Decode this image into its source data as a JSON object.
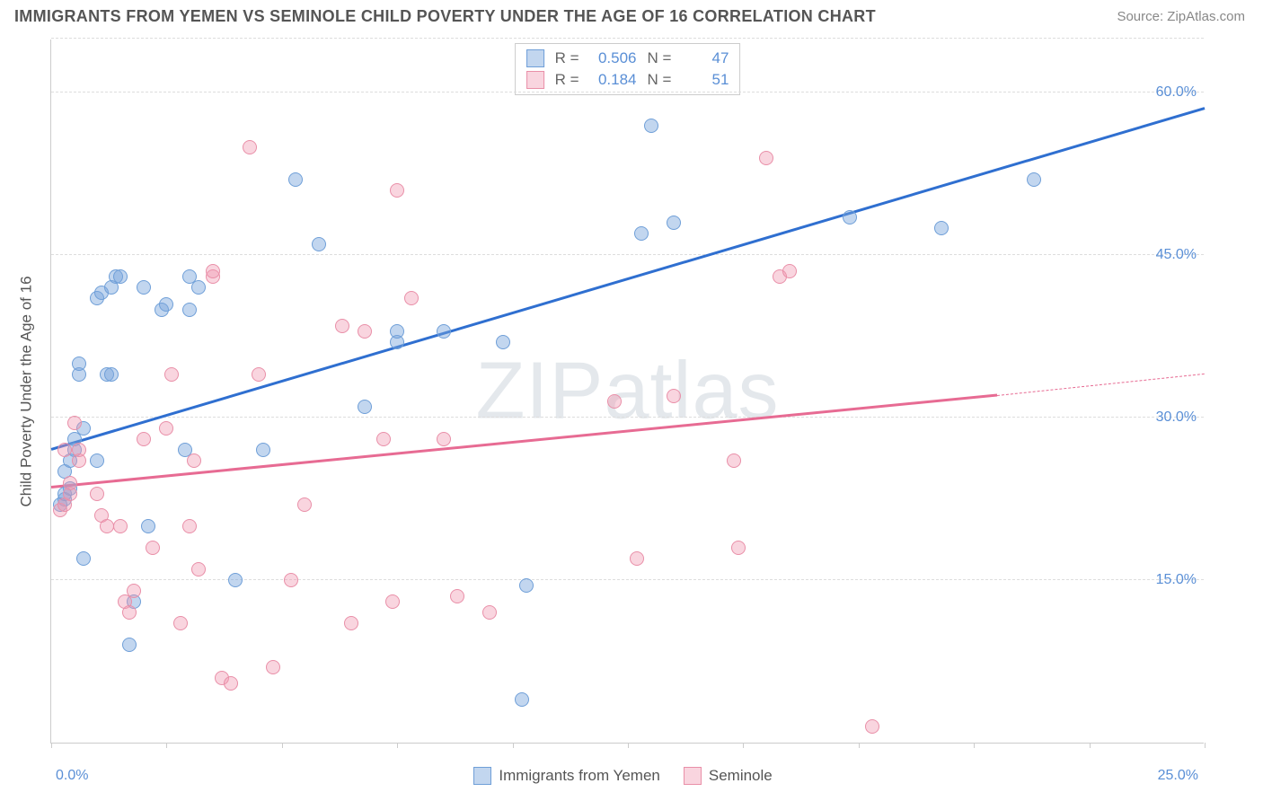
{
  "header": {
    "title": "IMMIGRANTS FROM YEMEN VS SEMINOLE CHILD POVERTY UNDER THE AGE OF 16 CORRELATION CHART",
    "source": "Source: ZipAtlas.com"
  },
  "watermark": {
    "bold": "ZIP",
    "thin": "atlas"
  },
  "chart": {
    "type": "scatter",
    "xlim": [
      0,
      25
    ],
    "ylim": [
      0,
      65
    ],
    "x_ticks_pct": [
      0,
      10,
      20,
      30,
      40,
      50,
      60,
      70,
      80,
      90,
      100
    ],
    "y_gridlines": [
      15,
      30,
      45,
      60,
      65
    ],
    "y_labels": [
      {
        "v": 15,
        "t": "15.0%"
      },
      {
        "v": 30,
        "t": "30.0%"
      },
      {
        "v": 45,
        "t": "45.0%"
      },
      {
        "v": 60,
        "t": "60.0%"
      }
    ],
    "x_min_label": "0.0%",
    "x_max_label": "25.0%",
    "y_title": "Child Poverty Under the Age of 16",
    "grid_color": "#dddddd",
    "axis_color": "#cccccc",
    "label_color": "#5a8fd6",
    "series": [
      {
        "name": "Immigrants from Yemen",
        "fill": "rgba(120,165,220,0.45)",
        "stroke": "#6f9fd8",
        "line_color": "#2f6fd0",
        "R": "0.506",
        "N": "47",
        "trend": {
          "x1": 0,
          "y1": 27,
          "x2": 25,
          "y2": 58.5
        },
        "points": [
          [
            0.2,
            22
          ],
          [
            0.3,
            22.5
          ],
          [
            0.3,
            23
          ],
          [
            0.4,
            23.5
          ],
          [
            0.3,
            25
          ],
          [
            0.4,
            26
          ],
          [
            0.5,
            27
          ],
          [
            0.5,
            28
          ],
          [
            0.7,
            17
          ],
          [
            0.7,
            29
          ],
          [
            0.6,
            34
          ],
          [
            0.6,
            35
          ],
          [
            1.0,
            26
          ],
          [
            1.2,
            34
          ],
          [
            1.3,
            34
          ],
          [
            1.0,
            41
          ],
          [
            1.1,
            41.5
          ],
          [
            1.3,
            42
          ],
          [
            1.4,
            43
          ],
          [
            1.5,
            43
          ],
          [
            2.0,
            42
          ],
          [
            1.7,
            9
          ],
          [
            1.8,
            13
          ],
          [
            2.1,
            20
          ],
          [
            2.4,
            40
          ],
          [
            2.5,
            40.5
          ],
          [
            2.9,
            27
          ],
          [
            3.0,
            40
          ],
          [
            3.0,
            43
          ],
          [
            3.2,
            42
          ],
          [
            4.0,
            15
          ],
          [
            4.6,
            27
          ],
          [
            5.3,
            52
          ],
          [
            5.8,
            46
          ],
          [
            6.8,
            31
          ],
          [
            7.5,
            37
          ],
          [
            7.5,
            38
          ],
          [
            8.5,
            38
          ],
          [
            9.8,
            37
          ],
          [
            10.2,
            4
          ],
          [
            10.3,
            14.5
          ],
          [
            12.8,
            47
          ],
          [
            13.0,
            57
          ],
          [
            13.5,
            48
          ],
          [
            17.3,
            48.5
          ],
          [
            19.3,
            47.5
          ],
          [
            21.3,
            52
          ]
        ]
      },
      {
        "name": "Seminole",
        "fill": "rgba(240,150,175,0.40)",
        "stroke": "#e98fa8",
        "line_color": "#e76b93",
        "R": "0.184",
        "N": "51",
        "trend_solid": {
          "x1": 0,
          "y1": 23.5,
          "x2": 20.5,
          "y2": 32
        },
        "trend_dash": {
          "x1": 20.5,
          "y1": 32,
          "x2": 25,
          "y2": 34
        },
        "points": [
          [
            0.2,
            21.5
          ],
          [
            0.3,
            22
          ],
          [
            0.4,
            23
          ],
          [
            0.4,
            24
          ],
          [
            0.3,
            27
          ],
          [
            0.5,
            29.5
          ],
          [
            0.6,
            26
          ],
          [
            0.6,
            27
          ],
          [
            1.0,
            23
          ],
          [
            1.1,
            21
          ],
          [
            1.2,
            20
          ],
          [
            1.5,
            20
          ],
          [
            1.6,
            13
          ],
          [
            1.7,
            12
          ],
          [
            1.8,
            14
          ],
          [
            2.0,
            28
          ],
          [
            2.2,
            18
          ],
          [
            2.5,
            29
          ],
          [
            2.6,
            34
          ],
          [
            2.8,
            11
          ],
          [
            3.0,
            20
          ],
          [
            3.1,
            26
          ],
          [
            3.2,
            16
          ],
          [
            3.5,
            43
          ],
          [
            3.5,
            43.5
          ],
          [
            3.7,
            6
          ],
          [
            3.9,
            5.5
          ],
          [
            4.3,
            55
          ],
          [
            4.5,
            34
          ],
          [
            4.8,
            7
          ],
          [
            5.2,
            15
          ],
          [
            5.5,
            22
          ],
          [
            6.3,
            38.5
          ],
          [
            6.5,
            11
          ],
          [
            6.8,
            38
          ],
          [
            7.2,
            28
          ],
          [
            7.4,
            13
          ],
          [
            7.5,
            51
          ],
          [
            7.8,
            41
          ],
          [
            8.5,
            28
          ],
          [
            8.8,
            13.5
          ],
          [
            9.5,
            12
          ],
          [
            12.2,
            31.5
          ],
          [
            12.7,
            17
          ],
          [
            13.5,
            32
          ],
          [
            14.8,
            26
          ],
          [
            14.9,
            18
          ],
          [
            15.8,
            43
          ],
          [
            16.0,
            43.5
          ],
          [
            15.5,
            54
          ],
          [
            17.8,
            1.5
          ]
        ]
      }
    ],
    "stats_labels": {
      "R": "R =",
      "N": "N ="
    },
    "bottom_legend": {
      "series1": "Immigrants from Yemen",
      "series2": "Seminole"
    }
  }
}
